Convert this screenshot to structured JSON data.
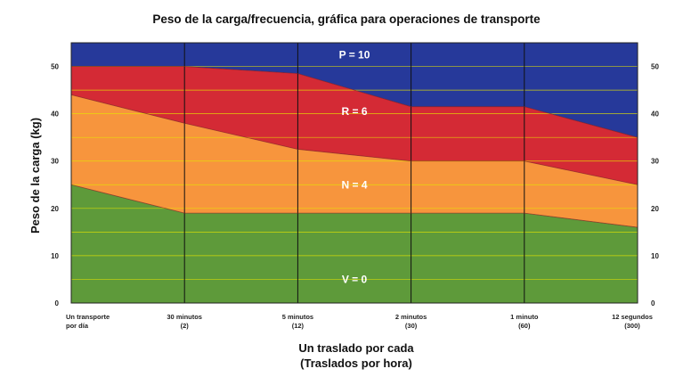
{
  "chart_data": {
    "type": "area",
    "title": "Peso de la carga/frecuencia, gráfica para operaciones de transporte",
    "ylabel": "Peso de la carga (kg)",
    "xlabel_lines": [
      "Un traslado por cada",
      "(Traslados por hora)"
    ],
    "ylim": [
      0,
      55
    ],
    "yticks": [
      0,
      10,
      20,
      30,
      40,
      50
    ],
    "categories": [
      [
        "Un transporte",
        "por día"
      ],
      [
        "30 minutos",
        "(2)"
      ],
      [
        "5 minutos",
        "(12)"
      ],
      [
        "2 minutos",
        "(30)"
      ],
      [
        "1 minuto",
        "(60)"
      ],
      [
        "12 segundos",
        "(300)"
      ]
    ],
    "boundaries": {
      "V_N": [
        25,
        19,
        19,
        19,
        19,
        16
      ],
      "N_R": [
        44,
        38,
        32.5,
        30,
        30,
        25
      ],
      "R_P": [
        50,
        50,
        48.5,
        41.5,
        41.5,
        35
      ]
    },
    "zones": [
      {
        "label": "V = 0",
        "color": "#5e9a3a",
        "value": 5
      },
      {
        "label": "N = 4",
        "color": "#f7953d",
        "value": 25
      },
      {
        "label": "R = 6",
        "color": "#d42a35",
        "value": 40.5
      },
      {
        "label": "P = 10",
        "color": "#26399a",
        "value": 52.5
      }
    ],
    "grid": true,
    "grid_color": "#e6e600"
  }
}
